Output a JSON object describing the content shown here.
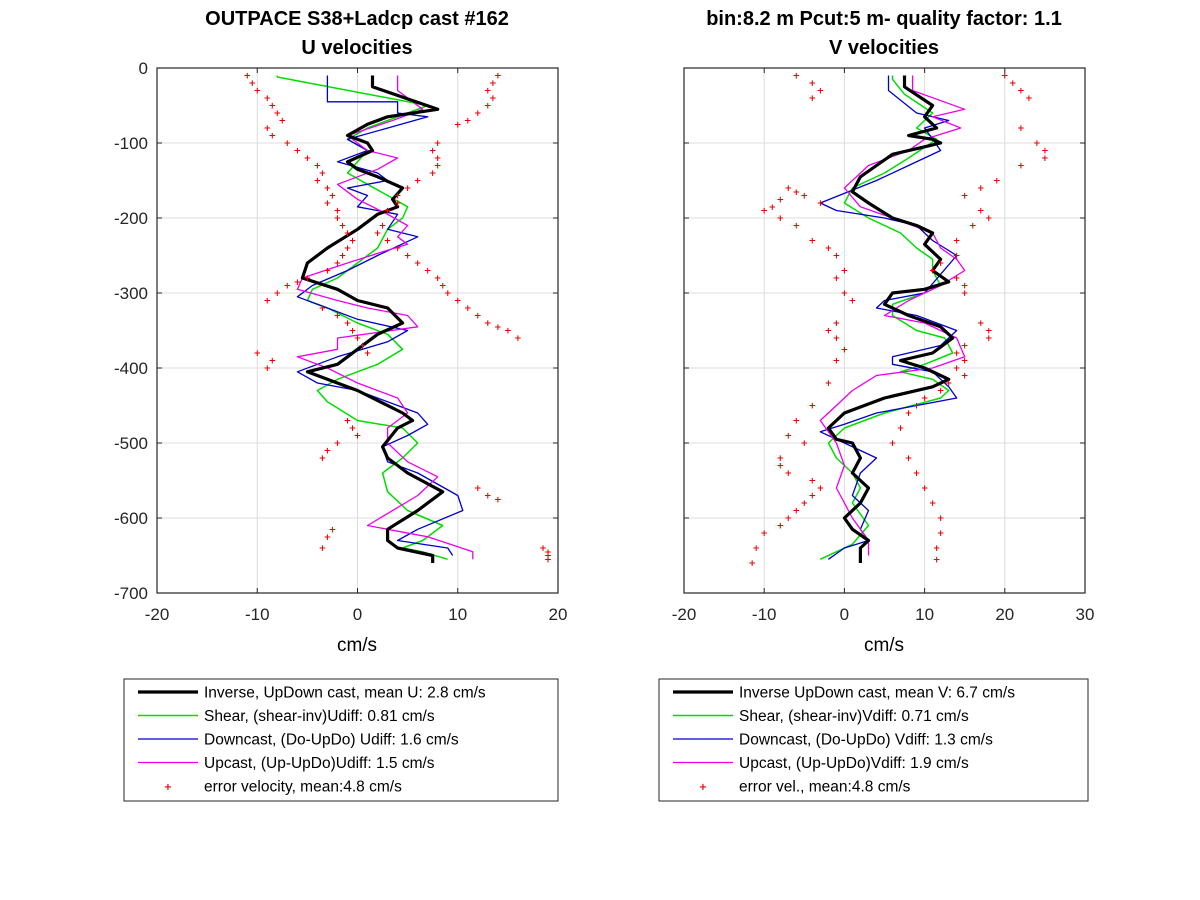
{
  "chart_data": [
    {
      "type": "line",
      "title": "OUTPACE S38+Ladcp cast #162",
      "subtitle": "U velocities",
      "xlabel": "cm/s",
      "ylabel": "",
      "xlim": [
        -20,
        20
      ],
      "ylim": [
        -700,
        0
      ],
      "xticks": [
        -20,
        -10,
        0,
        10,
        20
      ],
      "yticks": [
        0,
        -100,
        -200,
        -300,
        -400,
        -500,
        -600,
        -700
      ],
      "grid": true,
      "legend_position": "below",
      "series": [
        {
          "name": "Inverse, UpDown cast, mean U:  2.8 cm/s",
          "style": "solid",
          "color": "#000000",
          "width": 3.2,
          "x": [
            1.5,
            1.5,
            8,
            3,
            1,
            -1,
            1,
            1.5,
            -1,
            0,
            2,
            4.5,
            3.5,
            4,
            2,
            0,
            -3,
            -5,
            -5.5,
            -2,
            0,
            3,
            4.5,
            2,
            0,
            -2,
            -5,
            -3,
            0,
            4.5,
            5.5,
            4,
            2.5,
            3,
            5,
            8.5,
            6,
            3,
            3,
            4,
            7.5,
            7.5
          ],
          "y": [
            -10,
            -25,
            -55,
            -65,
            -75,
            -90,
            -100,
            -110,
            -125,
            -135,
            -145,
            -160,
            -175,
            -185,
            -195,
            -215,
            -240,
            -260,
            -280,
            -295,
            -310,
            -320,
            -340,
            -355,
            -375,
            -395,
            -405,
            -415,
            -430,
            -460,
            -470,
            -480,
            -505,
            -520,
            -540,
            -565,
            -590,
            -615,
            -630,
            -640,
            -650,
            -660
          ]
        },
        {
          "name": "Shear, (shear-inv)Udiff:  0.81 cm/s",
          "style": "solid",
          "color": "#00dd00",
          "width": 1.5,
          "x": [
            -8,
            -8,
            7,
            4,
            1,
            -1,
            1,
            0,
            -1,
            1,
            3,
            5,
            4.5,
            3,
            2,
            0,
            -2,
            -4.5,
            -5,
            -3,
            0,
            3,
            4.5,
            2,
            0,
            -2,
            -4,
            -3,
            0,
            4.5,
            6,
            4.5,
            2.5,
            3,
            5,
            8.5,
            6.5,
            4.5,
            6.5,
            9
          ],
          "y": [
            -10,
            -12,
            -50,
            -65,
            -80,
            -95,
            -110,
            -125,
            -140,
            -155,
            -170,
            -185,
            -200,
            -215,
            -240,
            -260,
            -280,
            -295,
            -310,
            -320,
            -340,
            -355,
            -375,
            -395,
            -405,
            -415,
            -430,
            -445,
            -470,
            -480,
            -500,
            -520,
            -540,
            -565,
            -590,
            -610,
            -630,
            -640,
            -645,
            -655
          ]
        },
        {
          "name": "Downcast, (Do-UpDo) Udiff:  1.6 cm/s",
          "style": "solid",
          "color": "#0000cc",
          "width": 1.3,
          "x": [
            -3,
            -3,
            4,
            4,
            7,
            -1,
            1,
            -2,
            2,
            3,
            -1,
            1,
            0,
            4,
            3,
            6,
            2,
            -1,
            -4.5,
            -6,
            -3,
            0,
            5,
            3,
            -2,
            -6,
            -4,
            0,
            6,
            7,
            5,
            2.5,
            3,
            6,
            10,
            10.5,
            6,
            4,
            9,
            9.5
          ],
          "y": [
            -10,
            -45,
            -45,
            -60,
            -65,
            -95,
            -110,
            -125,
            -140,
            -150,
            -160,
            -170,
            -185,
            -195,
            -215,
            -225,
            -250,
            -270,
            -290,
            -305,
            -320,
            -335,
            -350,
            -365,
            -385,
            -405,
            -420,
            -430,
            -460,
            -475,
            -490,
            -505,
            -525,
            -540,
            -570,
            -590,
            -615,
            -630,
            -640,
            -650
          ]
        },
        {
          "name": "Upcast, (Up-UpDo)Udiff:  1.5 cm/s",
          "style": "solid",
          "color": "#ee00ee",
          "width": 1.3,
          "x": [
            4,
            4,
            6.5,
            3.5,
            -1,
            1,
            4,
            2,
            -2,
            0,
            3,
            5,
            4,
            5,
            2.5,
            -1,
            -5.5,
            -6,
            -2,
            1,
            5,
            6,
            -2,
            -2,
            -6,
            -3,
            0,
            4,
            5,
            3,
            3,
            5,
            8,
            6,
            1,
            3,
            7,
            11.5,
            11.5
          ],
          "y": [
            -10,
            -30,
            -55,
            -70,
            -90,
            -110,
            -120,
            -135,
            -155,
            -175,
            -195,
            -210,
            -225,
            -235,
            -245,
            -260,
            -280,
            -295,
            -310,
            -320,
            -330,
            -345,
            -360,
            -375,
            -385,
            -400,
            -420,
            -440,
            -460,
            -480,
            -500,
            -525,
            -545,
            -570,
            -610,
            -615,
            -625,
            -645,
            -655
          ]
        },
        {
          "name": "error velocity, mean:4.8 cm/s",
          "style": "points",
          "color": "#ee0000",
          "x": [
            -11,
            -10.5,
            -10,
            -9,
            -8.5,
            -8,
            -7.5,
            -9,
            -8.5,
            -7,
            -6,
            -5,
            -4,
            -3.5,
            -4,
            -3,
            -2.5,
            -3,
            -2,
            -2,
            -1.5,
            -1,
            -0.5,
            -1,
            -1.5,
            -2,
            -3,
            -5,
            -6,
            -7,
            -8,
            -9,
            -10,
            -8.5,
            -9,
            -3.5,
            -2,
            -1,
            -0.5,
            0,
            0.5,
            1,
            -1,
            -0.5,
            0,
            -2,
            -3,
            -3.5,
            -2.5,
            -3,
            -3.5,
            14,
            13.5,
            13,
            13.5,
            13,
            12,
            11,
            10,
            8,
            7.5,
            8,
            8,
            7.5,
            6,
            5,
            4,
            4,
            3,
            2.5,
            2,
            3,
            4,
            5,
            6,
            7,
            8,
            8.5,
            9,
            10,
            11,
            12,
            13,
            14,
            15,
            16,
            12,
            13,
            14,
            18.5,
            19,
            19,
            19
          ],
          "y": [
            -10,
            -20,
            -30,
            -40,
            -50,
            -60,
            -70,
            -80,
            -90,
            -100,
            -110,
            -120,
            -130,
            -140,
            -150,
            -160,
            -170,
            -180,
            -190,
            -200,
            -210,
            -220,
            -230,
            -240,
            -250,
            -260,
            -270,
            -280,
            -285,
            -290,
            -300,
            -310,
            -380,
            -390,
            -400,
            -320,
            -330,
            -340,
            -350,
            -360,
            -370,
            -380,
            -470,
            -480,
            -490,
            -500,
            -510,
            -520,
            -615,
            -625,
            -640,
            -10,
            -20,
            -30,
            -40,
            -50,
            -60,
            -70,
            -75,
            -100,
            -110,
            -120,
            -130,
            -140,
            -150,
            -160,
            -170,
            -180,
            -190,
            -210,
            -220,
            -230,
            -240,
            -250,
            -260,
            -270,
            -280,
            -290,
            -300,
            -310,
            -320,
            -330,
            -340,
            -345,
            -350,
            -360,
            -560,
            -570,
            -575,
            -640,
            -645,
            -650,
            -655
          ]
        }
      ]
    },
    {
      "type": "line",
      "title": "bin:8.2 m  Pcut:5 m- quality factor:  1.1",
      "subtitle": "V velocities",
      "xlabel": "cm/s",
      "ylabel": "",
      "xlim": [
        -20,
        30
      ],
      "ylim": [
        -700,
        0
      ],
      "xticks": [
        -20,
        -10,
        0,
        10,
        20,
        30
      ],
      "yticks": [
        0,
        -100,
        -200,
        -300,
        -400,
        -500,
        -600,
        -700
      ],
      "grid": true,
      "legend_position": "below",
      "series": [
        {
          "name": "Inverse UpDown cast, mean V:  6.7 cm/s",
          "style": "solid",
          "color": "#000000",
          "width": 3.2,
          "x": [
            7.5,
            7.5,
            11,
            10,
            11.5,
            8,
            11,
            12,
            10,
            6,
            4,
            2,
            1,
            3,
            6,
            9,
            11,
            10,
            12,
            11,
            13,
            10,
            6,
            5,
            8,
            12,
            13.5,
            11,
            7,
            10,
            12,
            13,
            11,
            5,
            0,
            -2,
            -1,
            1,
            2,
            1,
            3,
            2,
            0,
            1,
            3,
            2,
            2
          ],
          "y": [
            -10,
            -25,
            -50,
            -65,
            -80,
            -90,
            -95,
            -100,
            -105,
            -115,
            -130,
            -145,
            -165,
            -180,
            -200,
            -210,
            -220,
            -235,
            -255,
            -270,
            -285,
            -295,
            -300,
            -315,
            -330,
            -345,
            -360,
            -380,
            -390,
            -400,
            -410,
            -415,
            -425,
            -440,
            -460,
            -480,
            -495,
            -500,
            -520,
            -540,
            -560,
            -580,
            -600,
            -615,
            -630,
            -640,
            -660
          ]
        },
        {
          "name": "Shear, (shear-inv)Vdiff:  0.71 cm/s",
          "style": "solid",
          "color": "#00dd00",
          "width": 1.5,
          "x": [
            6,
            6,
            7.5,
            11,
            9,
            11.5,
            8,
            5,
            1,
            0,
            3,
            7,
            9,
            11,
            11,
            12,
            10,
            6,
            6,
            9,
            12.5,
            13.5,
            10,
            7,
            11,
            13,
            12,
            5,
            0,
            -2,
            -1,
            1,
            2,
            1,
            3,
            1,
            -3
          ],
          "y": [
            -10,
            -15,
            -35,
            -60,
            -80,
            -95,
            -120,
            -140,
            -160,
            -180,
            -200,
            -220,
            -240,
            -255,
            -270,
            -290,
            -300,
            -315,
            -330,
            -350,
            -360,
            -380,
            -395,
            -405,
            -415,
            -430,
            -440,
            -460,
            -480,
            -500,
            -520,
            -540,
            -560,
            -580,
            -610,
            -635,
            -655
          ]
        },
        {
          "name": "Downcast, (Do-UpDo) Vdiff:  1.3 cm/s",
          "style": "solid",
          "color": "#0000cc",
          "width": 1.3,
          "x": [
            5.5,
            5.5,
            9,
            13,
            10,
            12,
            8,
            4,
            -3,
            -1,
            5,
            9,
            11,
            14,
            12,
            10,
            5,
            4,
            9,
            14,
            12,
            6,
            6,
            11,
            13,
            14,
            4,
            0,
            -3,
            0,
            4,
            2,
            1,
            3,
            2,
            3,
            0,
            -2
          ],
          "y": [
            -10,
            -30,
            -60,
            -70,
            -80,
            -110,
            -130,
            -150,
            -180,
            -190,
            -200,
            -210,
            -230,
            -250,
            -275,
            -300,
            -310,
            -320,
            -330,
            -350,
            -370,
            -385,
            -395,
            -405,
            -425,
            -440,
            -460,
            -475,
            -485,
            -500,
            -520,
            -540,
            -570,
            -590,
            -615,
            -630,
            -640,
            -655
          ]
        },
        {
          "name": "Upcast, (Up-UpDo)Vdiff:  1.9 cm/s",
          "style": "solid",
          "color": "#ee00ee",
          "width": 1.3,
          "x": [
            8.5,
            8.5,
            15,
            11,
            14.5,
            10,
            8,
            3,
            0,
            2,
            6,
            11,
            12,
            14,
            15,
            12,
            8,
            5,
            10,
            14,
            15,
            11,
            4,
            1,
            -1,
            -3,
            -1,
            0,
            -1,
            1,
            3,
            3
          ],
          "y": [
            -10,
            -30,
            -55,
            -65,
            -80,
            -95,
            -110,
            -130,
            -160,
            -185,
            -200,
            -220,
            -240,
            -255,
            -270,
            -290,
            -310,
            -330,
            -340,
            -360,
            -385,
            -400,
            -410,
            -430,
            -450,
            -470,
            -500,
            -530,
            -560,
            -600,
            -630,
            -650
          ]
        },
        {
          "name": "error vel., mean:4.8 cm/s",
          "style": "points",
          "color": "#ee0000",
          "x": [
            -6,
            -4,
            -3,
            -4,
            -3,
            -5,
            -6,
            -7,
            -8,
            -9,
            -10,
            -8,
            -6,
            -4,
            -2,
            -1,
            0,
            -1,
            0,
            1,
            -1,
            -2,
            -1,
            0,
            -1,
            -2,
            -4,
            -6,
            -7,
            -5,
            -8,
            -8,
            -7,
            -4,
            -3,
            -4,
            -5,
            -6,
            -7,
            -8,
            -10,
            -11,
            -11.5,
            20,
            21,
            22,
            23,
            22,
            24,
            25,
            25,
            22,
            19,
            17,
            15,
            17,
            18,
            16,
            14,
            14,
            12,
            11,
            14,
            15,
            15,
            17,
            18,
            18,
            15,
            14,
            15,
            14,
            15,
            13,
            12,
            10,
            9,
            8,
            7,
            6,
            8,
            9,
            10,
            11,
            12,
            12,
            11.5,
            11.5
          ],
          "y": [
            -10,
            -20,
            -30,
            -40,
            -180,
            -170,
            -165,
            -160,
            -175,
            -185,
            -190,
            -200,
            -210,
            -230,
            -240,
            -250,
            -270,
            -280,
            -300,
            -310,
            -340,
            -350,
            -360,
            -375,
            -390,
            -420,
            -450,
            -470,
            -490,
            -500,
            -520,
            -530,
            -540,
            -550,
            -560,
            -570,
            -580,
            -590,
            -600,
            -610,
            -620,
            -640,
            -660,
            -10,
            -20,
            -30,
            -40,
            -80,
            -100,
            -110,
            -120,
            -130,
            -150,
            -160,
            -170,
            -190,
            -200,
            -210,
            -230,
            -250,
            -260,
            -270,
            -280,
            -290,
            -300,
            -340,
            -350,
            -360,
            -370,
            -380,
            -390,
            -400,
            -410,
            -420,
            -430,
            -440,
            -450,
            -460,
            -480,
            -500,
            -520,
            -540,
            -560,
            -580,
            -600,
            -620,
            -640,
            -655
          ]
        }
      ]
    }
  ]
}
